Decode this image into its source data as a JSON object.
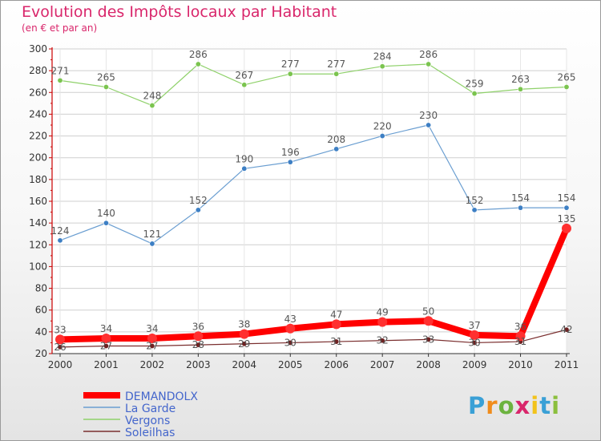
{
  "header": {
    "title": "Evolution des Impôts locaux par Habitant",
    "subtitle": "(en € et par an)"
  },
  "logo": {
    "text": "Proxiti"
  },
  "colors": {
    "title": "#d9266b",
    "axis": "#cc0000",
    "grid": "#cfcfcf",
    "label": "#555555"
  },
  "chart_data": {
    "type": "line",
    "title": "Evolution des Impôts locaux par Habitant",
    "subtitle": "(en € et par an)",
    "xlabel": "",
    "ylabel": "",
    "categories": [
      "2000",
      "2001",
      "2002",
      "2003",
      "2004",
      "2005",
      "2006",
      "2007",
      "2008",
      "2009",
      "2010",
      "2011"
    ],
    "ylim": [
      20,
      300
    ],
    "yticks": [
      20,
      40,
      60,
      80,
      100,
      120,
      140,
      160,
      180,
      200,
      220,
      240,
      260,
      280,
      300
    ],
    "grid": true,
    "legend_position": "bottom-left",
    "series": [
      {
        "name": "DEMANDOLX",
        "color": "#ff0000",
        "marker": "#ff3030",
        "width": 8,
        "r": 6,
        "labels": true,
        "values": [
          33,
          34,
          34,
          36,
          38,
          43,
          47,
          49,
          50,
          37,
          36,
          135
        ]
      },
      {
        "name": "La Garde",
        "color": "#6a9ed1",
        "marker": "#3d7fc4",
        "width": 1.2,
        "r": 3.2,
        "labels": true,
        "values": [
          124,
          140,
          121,
          152,
          190,
          196,
          208,
          220,
          230,
          152,
          154,
          154
        ]
      },
      {
        "name": "Vergons",
        "color": "#8fd16a",
        "marker": "#7bc44f",
        "width": 1.2,
        "r": 3.2,
        "labels": true,
        "values": [
          271,
          265,
          248,
          286,
          267,
          277,
          277,
          284,
          286,
          259,
          263,
          265
        ]
      },
      {
        "name": "Soleilhas",
        "color": "#7a2e2e",
        "marker": "#6e2222",
        "width": 1.2,
        "r": 3.2,
        "labels": true,
        "values": [
          26,
          27,
          27,
          28,
          29,
          30,
          31,
          32,
          33,
          30,
          31,
          42
        ]
      }
    ]
  }
}
